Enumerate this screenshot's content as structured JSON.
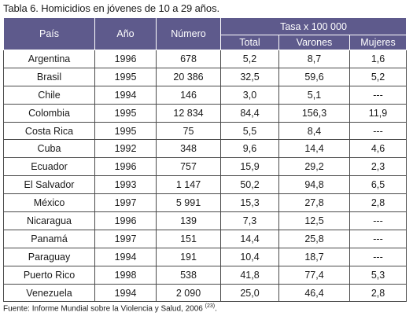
{
  "caption": "Tabla 6. Homicidios en jóvenes de 10 a 29 años.",
  "header": {
    "pais": "País",
    "anio": "Año",
    "numero": "Número",
    "tasa": "Tasa x 100 000",
    "total": "Total",
    "varones": "Varones",
    "mujeres": "Mujeres"
  },
  "rows": [
    [
      "Argentina",
      "1996",
      "678",
      "5,2",
      "8,7",
      "1,6"
    ],
    [
      "Brasil",
      "1995",
      "20 386",
      "32,5",
      "59,6",
      "5,2"
    ],
    [
      "Chile",
      "1994",
      "146",
      "3,0",
      "5,1",
      "---"
    ],
    [
      "Colombia",
      "1995",
      "12 834",
      "84,4",
      "156,3",
      "11,9"
    ],
    [
      "Costa Rica",
      "1995",
      "75",
      "5,5",
      "8,4",
      "---"
    ],
    [
      "Cuba",
      "1992",
      "348",
      "9,6",
      "14,4",
      "4,6"
    ],
    [
      "Ecuador",
      "1996",
      "757",
      "15,9",
      "29,2",
      "2,3"
    ],
    [
      "El Salvador",
      "1993",
      "1 147",
      "50,2",
      "94,8",
      "6,5"
    ],
    [
      "México",
      "1997",
      "5 991",
      "15,3",
      "27,8",
      "2,8"
    ],
    [
      "Nicaragua",
      "1996",
      "139",
      "7,3",
      "12,5",
      "---"
    ],
    [
      "Panamá",
      "1997",
      "151",
      "14,4",
      "25,8",
      "---"
    ],
    [
      "Paraguay",
      "1994",
      "191",
      "10,4",
      "18,7",
      "---"
    ],
    [
      "Puerto Rico",
      "1998",
      "538",
      "41,8",
      "77,4",
      "5,3"
    ],
    [
      "Venezuela",
      "1994",
      "2 090",
      "25,0",
      "46,4",
      "2,8"
    ]
  ],
  "source": {
    "text": "Fuente: Informe Mundial sobre la Violencia y Salud, 2006 ",
    "ref": "(23)",
    "end": "."
  }
}
